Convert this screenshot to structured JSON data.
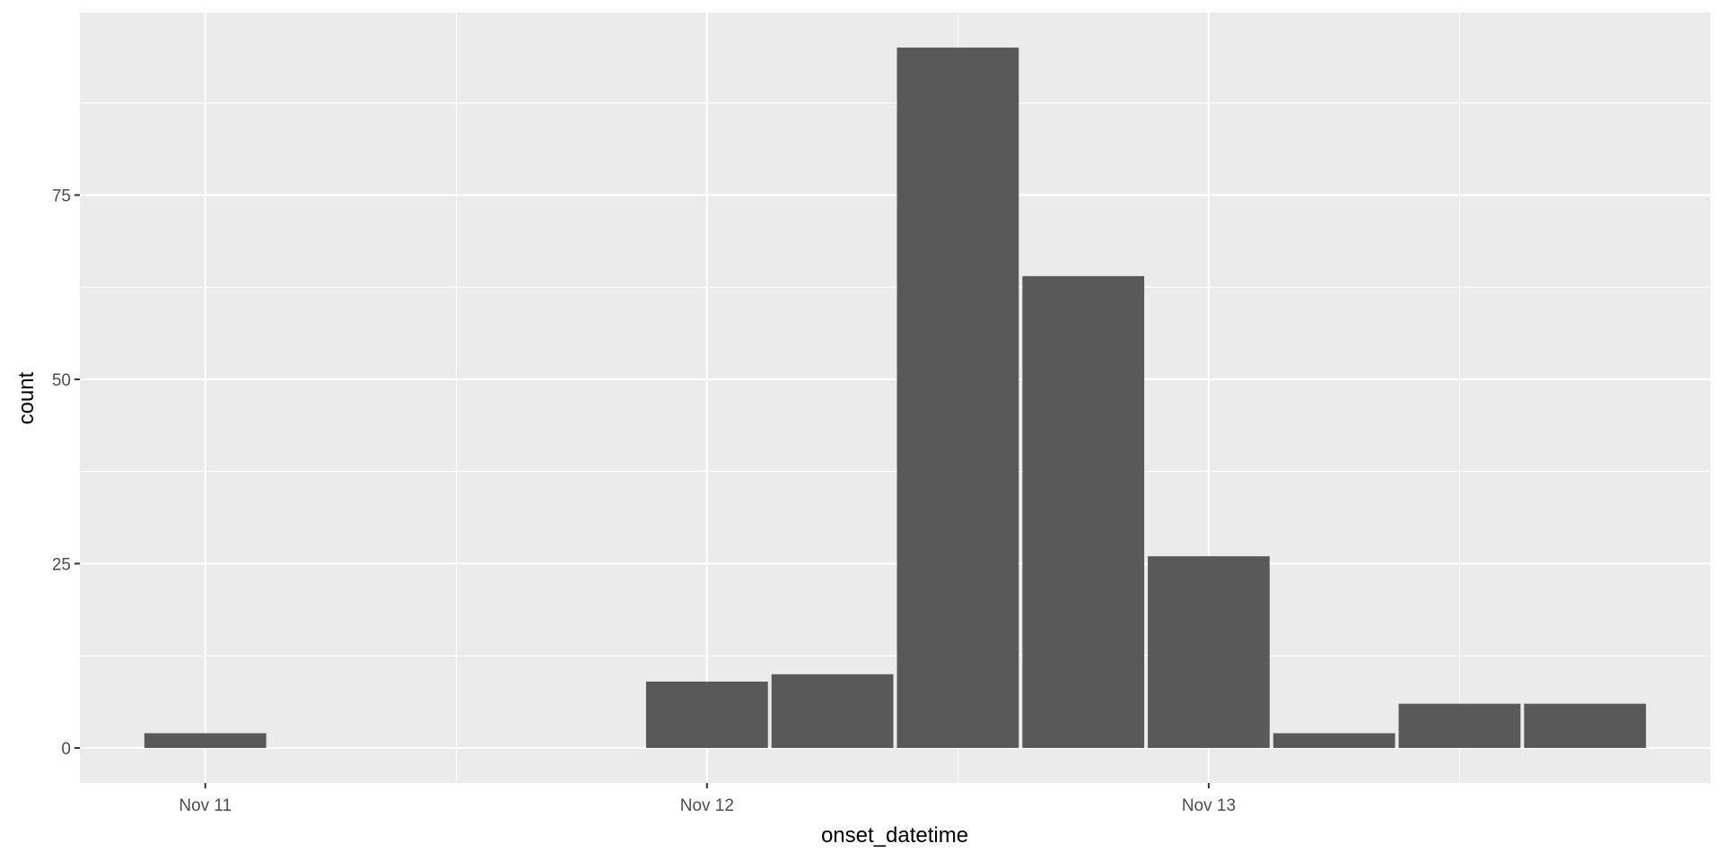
{
  "colors": {
    "panel_background": "#EBEBEB",
    "grid_major": "#FFFFFF",
    "bar_fill": "#595959",
    "tick_text": "#4D4D4D",
    "axis_title_text": "#000000"
  },
  "chart_data": {
    "type": "bar",
    "title": "",
    "xlabel": "onset_datetime",
    "ylabel": "count",
    "x_axis_type": "datetime",
    "bin_width_hours": 6,
    "bins": [
      {
        "start": "Nov 10 21:00",
        "end": "Nov 11 03:00",
        "count": 2
      },
      {
        "start": "Nov 11 21:00",
        "end": "Nov 12 03:00",
        "count": 9
      },
      {
        "start": "Nov 12 03:00",
        "end": "Nov 12 09:00",
        "count": 10
      },
      {
        "start": "Nov 12 09:00",
        "end": "Nov 12 15:00",
        "count": 95
      },
      {
        "start": "Nov 12 15:00",
        "end": "Nov 12 21:00",
        "count": 64
      },
      {
        "start": "Nov 12 21:00",
        "end": "Nov 13 03:00",
        "count": 26
      },
      {
        "start": "Nov 13 03:00",
        "end": "Nov 13 09:00",
        "count": 2
      },
      {
        "start": "Nov 13 09:00",
        "end": "Nov 13 15:00",
        "count": 6
      },
      {
        "start": "Nov 13 15:00",
        "end": "Nov 13 21:00",
        "count": 6
      }
    ],
    "xlim": [
      "Nov 10 18:00",
      "Nov 14 00:00"
    ],
    "ylim": [
      -4.75,
      99.75
    ],
    "x_ticks": [
      {
        "label": "Nov 11",
        "value": "Nov 11 00:00"
      },
      {
        "label": "Nov 12",
        "value": "Nov 12 00:00"
      },
      {
        "label": "Nov 13",
        "value": "Nov 13 00:00"
      }
    ],
    "x_minor_grid": [
      "Nov 11 12:00",
      "Nov 12 12:00",
      "Nov 13 12:00"
    ],
    "y_ticks": [
      0,
      25,
      50,
      75
    ],
    "y_minor_grid": [
      12.5,
      37.5,
      62.5,
      87.5
    ],
    "grid": true,
    "legend": "none"
  }
}
